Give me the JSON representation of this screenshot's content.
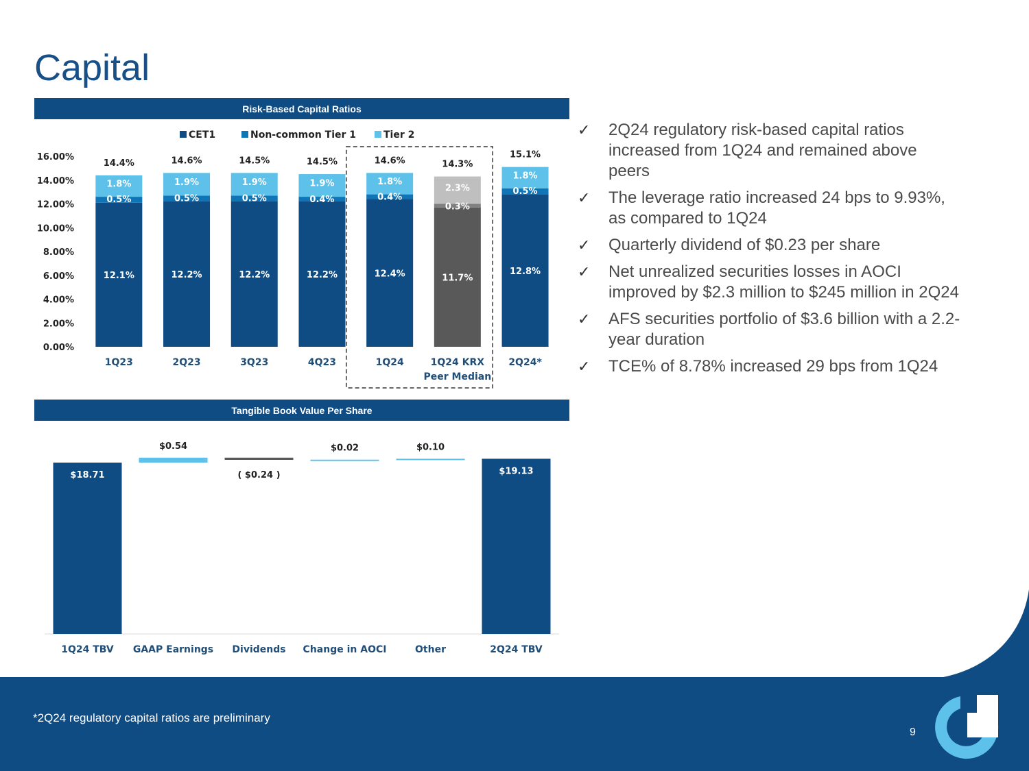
{
  "page": {
    "title": "Capital",
    "footnote": "*2Q24 regulatory capital ratios are preliminary",
    "page_number": "9"
  },
  "section1": {
    "title": "Risk-Based Capital Ratios"
  },
  "section2": {
    "title": "Tangible Book Value Per Share"
  },
  "colors": {
    "navy": "#0f4c84",
    "mid_blue": "#1075b6",
    "light_blue": "#5ec1ea",
    "dark_gray": "#595959",
    "mid_gray": "#808080",
    "light_gray": "#bfbfbf"
  },
  "bullets": [
    "2Q24 regulatory risk-based capital ratios increased from 1Q24 and remained above peers",
    "The leverage ratio increased 24 bps to 9.93%, as compared to 1Q24",
    "Quarterly dividend of $0.23 per share",
    "Net unrealized securities losses in AOCI improved by $2.3 million to $245 million in 2Q24",
    "AFS securities portfolio of $3.6 billion with a 2.2-year duration",
    "TCE% of 8.78% increased 29 bps from 1Q24"
  ],
  "chart_data": [
    {
      "type": "bar",
      "stacked": true,
      "title": "Risk-Based Capital Ratios",
      "categories": [
        "1Q23",
        "2Q23",
        "3Q23",
        "4Q23",
        "1Q24",
        "1Q24 KRX Peer Median",
        "2Q24*"
      ],
      "series": [
        {
          "name": "CET1",
          "values": [
            12.1,
            12.2,
            12.2,
            12.2,
            12.4,
            11.7,
            12.8
          ],
          "labels": [
            "12.1%",
            "12.2%",
            "12.2%",
            "12.2%",
            "12.4%",
            "11.7%",
            "12.8%"
          ]
        },
        {
          "name": "Non-common Tier 1",
          "values": [
            0.5,
            0.5,
            0.5,
            0.4,
            0.4,
            0.3,
            0.5
          ],
          "labels": [
            "0.5%",
            "0.5%",
            "0.5%",
            "0.4%",
            "0.4%",
            "0.3%",
            "0.5%"
          ]
        },
        {
          "name": "Tier 2",
          "values": [
            1.8,
            1.9,
            1.9,
            1.9,
            1.8,
            2.3,
            1.8
          ],
          "labels": [
            "1.8%",
            "1.9%",
            "1.9%",
            "1.9%",
            "1.8%",
            "2.3%",
            "1.8%"
          ]
        }
      ],
      "totals": [
        "14.4%",
        "14.6%",
        "14.5%",
        "14.5%",
        "14.6%",
        "14.3%",
        "15.1%"
      ],
      "peer_category": "1Q24 KRX Peer Median",
      "highlighted_categories": [
        "1Q24",
        "1Q24 KRX Peer Median"
      ],
      "ylim": [
        0,
        16
      ],
      "yticks": [
        "0.00%",
        "2.00%",
        "4.00%",
        "6.00%",
        "8.00%",
        "10.00%",
        "12.00%",
        "14.00%",
        "16.00%"
      ],
      "legend_position": "top"
    },
    {
      "type": "bar",
      "subtype": "waterfall",
      "title": "Tangible Book Value Per Share",
      "categories": [
        "1Q24 TBV",
        "GAAP Earnings",
        "Dividends",
        "Change in AOCI",
        "Other",
        "2Q24 TBV"
      ],
      "values": [
        18.71,
        0.54,
        -0.24,
        0.02,
        0.1,
        19.13
      ],
      "labels": [
        "$18.71",
        "$0.54",
        "( $0.24 )",
        "$0.02",
        "$0.10",
        "$19.13"
      ],
      "kinds": [
        "total",
        "increase",
        "decrease",
        "increase",
        "increase",
        "total"
      ],
      "ylim": [
        0,
        19.4
      ]
    }
  ]
}
